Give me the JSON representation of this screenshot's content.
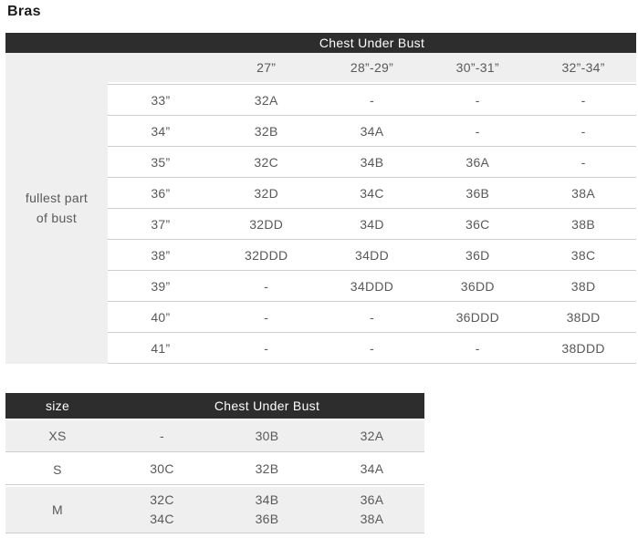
{
  "page": {
    "title": "Bras"
  },
  "colors": {
    "header_bar_bg": "#2d2d2d",
    "header_bar_text": "#ffffff",
    "shaded_bg": "#efefef",
    "row_border": "#cdcdcd",
    "cell_text": "#595959"
  },
  "table1": {
    "header": "Chest Under Bust",
    "side_label": {
      "line1": "fullest part",
      "line2": "of bust"
    },
    "column_headers": [
      "27”",
      "28”-29”",
      "30”-31”",
      "32”-34”"
    ],
    "rows": [
      {
        "measurement": "33”",
        "values": [
          "32A",
          "-",
          "-",
          "-"
        ]
      },
      {
        "measurement": "34”",
        "values": [
          "32B",
          "34A",
          "-",
          "-"
        ]
      },
      {
        "measurement": "35”",
        "values": [
          "32C",
          "34B",
          "36A",
          "-"
        ]
      },
      {
        "measurement": "36”",
        "values": [
          "32D",
          "34C",
          "36B",
          "38A"
        ]
      },
      {
        "measurement": "37”",
        "values": [
          "32DD",
          "34D",
          "36C",
          "38B"
        ]
      },
      {
        "measurement": "38”",
        "values": [
          "32DDD",
          "34DD",
          "36D",
          "38C"
        ]
      },
      {
        "measurement": "39”",
        "values": [
          "-",
          "34DDD",
          "36DD",
          "38D"
        ]
      },
      {
        "measurement": "40”",
        "values": [
          "-",
          "-",
          "36DDD",
          "38DD"
        ]
      },
      {
        "measurement": "41”",
        "values": [
          "-",
          "-",
          "-",
          "38DDD"
        ]
      }
    ]
  },
  "table2": {
    "size_header": "size",
    "header": "Chest Under Bust",
    "rows": [
      {
        "size": "XS",
        "values": [
          [
            "-"
          ],
          [
            "30B"
          ],
          [
            "32A"
          ]
        ]
      },
      {
        "size": "S",
        "values": [
          [
            "30C"
          ],
          [
            "32B"
          ],
          [
            "34A"
          ]
        ]
      },
      {
        "size": "M",
        "values": [
          [
            "32C",
            "34C"
          ],
          [
            "34B",
            "36B"
          ],
          [
            "36A",
            "38A"
          ]
        ]
      }
    ]
  },
  "chart_data": [
    {
      "type": "table",
      "title": "Chest Under Bust",
      "row_header": "fullest part of bust",
      "col_labels": [
        "27”",
        "28”-29”",
        "30”-31”",
        "32”-34”"
      ],
      "row_labels": [
        "33”",
        "34”",
        "35”",
        "36”",
        "37”",
        "38”",
        "39”",
        "40”",
        "41”"
      ],
      "cells": [
        [
          "32A",
          "-",
          "-",
          "-"
        ],
        [
          "32B",
          "34A",
          "-",
          "-"
        ],
        [
          "32C",
          "34B",
          "36A",
          "-"
        ],
        [
          "32D",
          "34C",
          "36B",
          "38A"
        ],
        [
          "32DD",
          "34D",
          "36C",
          "38B"
        ],
        [
          "32DDD",
          "34DD",
          "36D",
          "38C"
        ],
        [
          "-",
          "34DDD",
          "36DD",
          "38D"
        ],
        [
          "-",
          "-",
          "36DDD",
          "38DD"
        ],
        [
          "-",
          "-",
          "-",
          "38DDD"
        ]
      ]
    },
    {
      "type": "table",
      "title": "Chest Under Bust",
      "row_header": "size",
      "row_labels": [
        "XS",
        "S",
        "M"
      ],
      "cells": [
        [
          "-",
          "30B",
          "32A"
        ],
        [
          "30C",
          "32B",
          "34A"
        ],
        [
          "32C / 34C",
          "34B / 36B",
          "36A / 38A"
        ]
      ]
    }
  ]
}
